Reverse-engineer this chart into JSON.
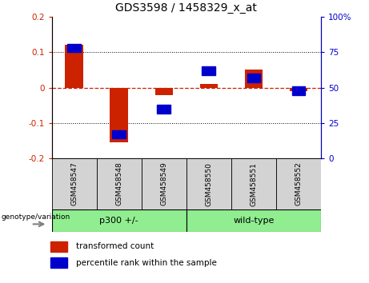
{
  "title": "GDS3598 / 1458329_x_at",
  "categories": [
    "GSM458547",
    "GSM458548",
    "GSM458549",
    "GSM458550",
    "GSM458551",
    "GSM458552"
  ],
  "red_values": [
    0.122,
    -0.155,
    -0.02,
    0.01,
    0.052,
    -0.01
  ],
  "blue_values": [
    78,
    17,
    35,
    62,
    57,
    48
  ],
  "ylim_left": [
    -0.2,
    0.2
  ],
  "ylim_right": [
    0,
    100
  ],
  "yticks_left": [
    -0.2,
    -0.1,
    0.0,
    0.1,
    0.2
  ],
  "yticks_right": [
    0,
    25,
    50,
    75,
    100
  ],
  "bar_width": 0.4,
  "red_color": "#CC2200",
  "blue_color": "#0000CC",
  "hline_color": "#CC2200",
  "grid_color": "black",
  "sample_bg_color": "#D3D3D3",
  "group_color": "#90EE90",
  "plot_bg": "white",
  "label_red": "transformed count",
  "label_blue": "percentile rank within the sample",
  "group1_label": "p300 +/-",
  "group2_label": "wild-type",
  "geno_label": "genotype/variation"
}
